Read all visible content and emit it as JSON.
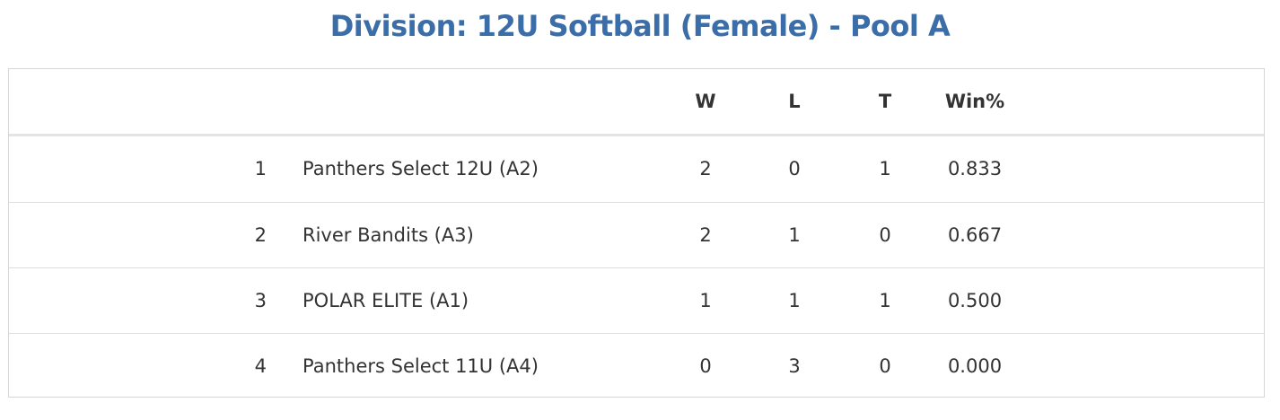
{
  "header": {
    "title": "Division: 12U Softball (Female) - Pool A"
  },
  "table": {
    "columns": [
      "W",
      "L",
      "T",
      "Win%"
    ],
    "rows": [
      [
        1,
        "Panthers Select 12U (A2)",
        2,
        0,
        1,
        "0.833"
      ],
      [
        2,
        "River Bandits (A3)",
        2,
        1,
        0,
        "0.667"
      ],
      [
        3,
        "POLAR ELITE (A1)",
        1,
        1,
        1,
        "0.500"
      ],
      [
        4,
        "Panthers Select 11U (A4)",
        0,
        3,
        0,
        "0.000"
      ]
    ]
  }
}
